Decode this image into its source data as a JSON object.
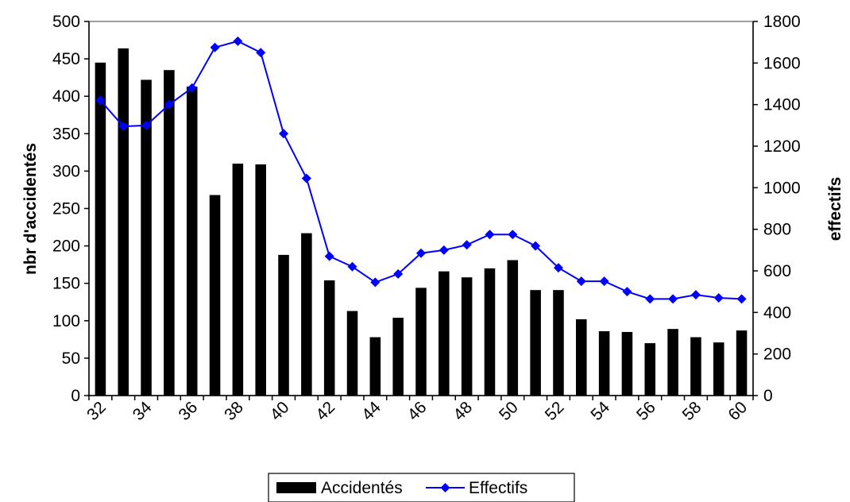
{
  "chart_data": {
    "type": "bar+line",
    "title": "",
    "xlabel": "",
    "x": [
      32,
      33,
      34,
      35,
      36,
      37,
      38,
      39,
      40,
      41,
      42,
      43,
      44,
      45,
      46,
      47,
      48,
      49,
      50,
      51,
      52,
      53,
      54,
      55,
      56,
      57,
      58,
      59,
      60
    ],
    "x_ticks": [
      "32",
      "34",
      "36",
      "38",
      "40",
      "42",
      "44",
      "46",
      "48",
      "50",
      "52",
      "54",
      "56",
      "58",
      "60"
    ],
    "y_left": {
      "label": "nbr d'accidentés",
      "lim": [
        0,
        500
      ],
      "ticks": [
        0,
        50,
        100,
        150,
        200,
        250,
        300,
        350,
        400,
        450,
        500
      ]
    },
    "y_right": {
      "label": "effectifs",
      "lim": [
        0,
        1800
      ],
      "ticks": [
        0,
        200,
        400,
        600,
        800,
        1000,
        1200,
        1400,
        1600,
        1800
      ]
    },
    "series": [
      {
        "name": "Accidentés",
        "type": "bar",
        "axis": "left",
        "color": "#000000",
        "values": [
          445,
          464,
          422,
          435,
          413,
          268,
          310,
          309,
          188,
          217,
          154,
          113,
          78,
          104,
          144,
          166,
          158,
          170,
          181,
          141,
          141,
          102,
          86,
          85,
          70,
          89,
          78,
          71,
          87
        ]
      },
      {
        "name": "Effectifs",
        "type": "line",
        "axis": "right",
        "color": "#0000FF",
        "marker": "diamond",
        "values": [
          1420,
          1295,
          1300,
          1400,
          1480,
          1675,
          1705,
          1650,
          1260,
          1045,
          670,
          620,
          545,
          585,
          685,
          700,
          725,
          775,
          775,
          720,
          615,
          550,
          550,
          500,
          465,
          465,
          485,
          470,
          465
        ]
      }
    ],
    "grid": false,
    "legend": {
      "position": "bottom",
      "entries": [
        "Accidentés",
        "Effectifs"
      ]
    }
  }
}
